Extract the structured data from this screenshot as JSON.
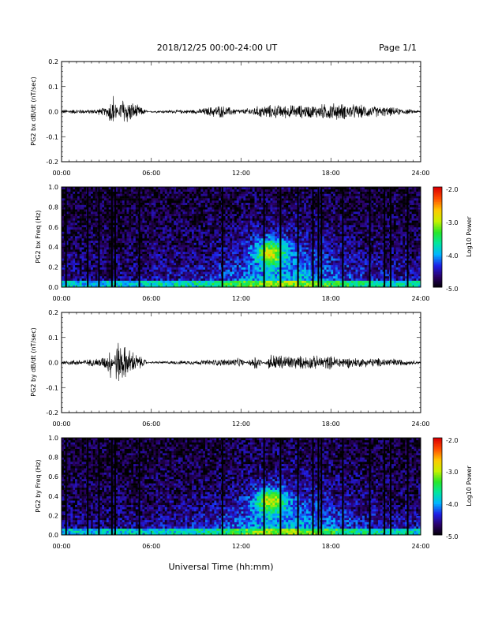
{
  "header": {
    "title": "2018/12/25  00:00-24:00 UT",
    "page": "Page 1/1"
  },
  "x_axis": {
    "ticks": [
      "00:00",
      "06:00",
      "12:00",
      "18:00",
      "24:00"
    ],
    "title": "Universal Time (hh:mm)"
  },
  "colorbar": {
    "label": "Log10 Power",
    "ticks": [
      "-2.0",
      "-3.0",
      "-4.0",
      "-5.0"
    ],
    "colors": [
      "#000000",
      "#2a0066",
      "#1e1ee6",
      "#00b4ff",
      "#00e6a0",
      "#28e628",
      "#c8f000",
      "#ffc800",
      "#ff5000",
      "#dc0000"
    ]
  },
  "chart_data": [
    {
      "type": "line",
      "ylabel": "PG2 bx dB/dt (nT/sec)",
      "ylim": [
        -0.2,
        0.2
      ],
      "yticks": [
        "0.2",
        "0.1",
        "0.0",
        "-0.1",
        "-0.2"
      ],
      "xlim": [
        "00:00",
        "24:00"
      ],
      "x": [
        "00:00",
        "02:00",
        "03:00",
        "03:30",
        "04:00",
        "06:00",
        "09:00",
        "10:30",
        "12:00",
        "13:30",
        "15:00",
        "17:00",
        "18:00",
        "20:00",
        "22:00",
        "24:00"
      ],
      "series": [
        {
          "values": [
            0.01,
            0.01,
            0.02,
            0.09,
            -0.07,
            0.005,
            0.01,
            0.03,
            0.01,
            0.03,
            0.03,
            0.03,
            0.04,
            0.03,
            0.02,
            0.005
          ]
        }
      ]
    },
    {
      "type": "heatmap",
      "ylabel": "PG2 bx Freq (Hz)",
      "ylim": [
        0.0,
        1.0
      ],
      "yticks": [
        "1.0",
        "0.8",
        "0.6",
        "0.4",
        "0.2",
        "0.0"
      ],
      "xlim": [
        "00:00",
        "24:00"
      ],
      "zlim": [
        -5.0,
        -2.0
      ],
      "data_gaps": [
        "00:18",
        "01:45",
        "02:30",
        "03:22",
        "03:35",
        "05:12",
        "10:45",
        "13:32",
        "14:38",
        "15:48",
        "16:48",
        "17:10",
        "17:22",
        "18:48",
        "20:36",
        "21:35",
        "22:00",
        "23:08"
      ],
      "peak": {
        "time": "14:00",
        "freq": 0.35,
        "log_power": -2.5
      }
    },
    {
      "type": "line",
      "ylabel": "PG2 by dB/dt (nT/sec)",
      "ylim": [
        -0.2,
        0.2
      ],
      "yticks": [
        "0.2",
        "0.1",
        "0.0",
        "-0.1",
        "-0.2"
      ],
      "xlim": [
        "00:00",
        "24:00"
      ],
      "x": [
        "00:00",
        "02:00",
        "03:00",
        "03:20",
        "03:40",
        "06:00",
        "09:00",
        "12:00",
        "13:00",
        "14:00",
        "15:30",
        "17:00",
        "18:00",
        "20:00",
        "22:00",
        "24:00"
      ],
      "series": [
        {
          "values": [
            0.01,
            0.015,
            0.03,
            0.08,
            -0.1,
            0.005,
            0.01,
            0.02,
            -0.04,
            0.04,
            0.03,
            0.03,
            0.03,
            0.02,
            0.02,
            0.005
          ]
        }
      ]
    },
    {
      "type": "heatmap",
      "ylabel": "PG2 by Freq (Hz)",
      "ylim": [
        0.0,
        1.0
      ],
      "yticks": [
        "1.0",
        "0.8",
        "0.6",
        "0.4",
        "0.2",
        "0.0"
      ],
      "xlim": [
        "00:00",
        "24:00"
      ],
      "zlim": [
        -5.0,
        -2.0
      ],
      "data_gaps": [
        "00:18",
        "01:45",
        "02:30",
        "03:22",
        "03:35",
        "05:12",
        "10:45",
        "13:32",
        "14:38",
        "15:48",
        "16:48",
        "17:10",
        "17:22",
        "18:48",
        "20:36",
        "21:35",
        "22:00",
        "23:08"
      ],
      "peak": {
        "time": "14:00",
        "freq": 0.35,
        "log_power": -2.5
      }
    }
  ]
}
